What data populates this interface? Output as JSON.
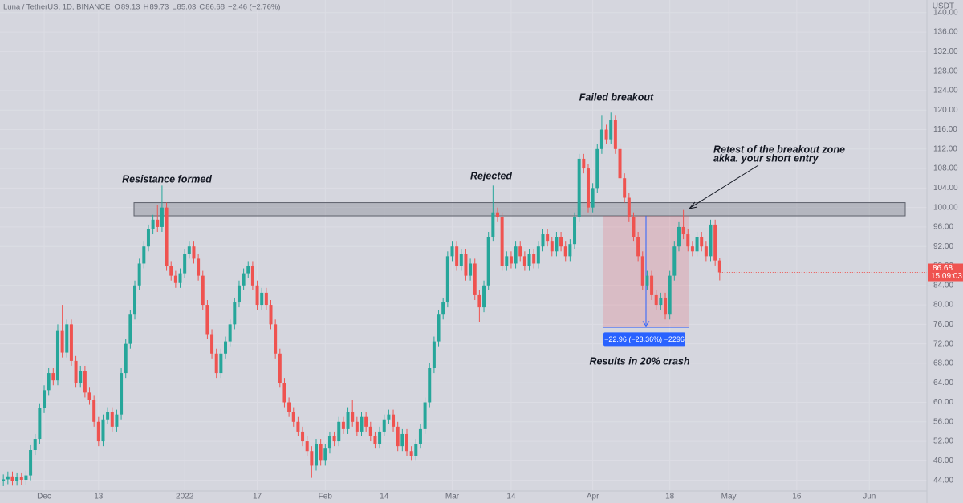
{
  "chart_data": {
    "type": "candlestick",
    "symbol": "Luna / TetherUS, 1D, BINANCE",
    "ohlc_letters": [
      "O",
      "H",
      "L",
      "C"
    ],
    "change": "−2.46 (−2.76%)",
    "currency": "USDT",
    "countdown": "15:09:03",
    "up_color": "#26a69a",
    "down_color": "#ef5350",
    "grid": true,
    "xlim": [
      -0.74,
      203.7
    ],
    "xticks": [
      {
        "value": 9,
        "label": "Dec"
      },
      {
        "value": 21,
        "label": "13"
      },
      {
        "value": 40,
        "label": "2022"
      },
      {
        "value": 56,
        "label": "17"
      },
      {
        "value": 71,
        "label": "Feb"
      },
      {
        "value": 84,
        "label": "14"
      },
      {
        "value": 99,
        "label": "Mar"
      },
      {
        "value": 112,
        "label": "14"
      },
      {
        "value": 130,
        "label": "Apr"
      },
      {
        "value": 147,
        "label": "18"
      },
      {
        "value": 160,
        "label": "May"
      },
      {
        "value": 175,
        "label": "16"
      },
      {
        "value": 191,
        "label": "Jun"
      }
    ],
    "ylim": [
      41.8,
      142.6
    ],
    "yticks": [
      {
        "value": 44,
        "label": "44.00"
      },
      {
        "value": 48,
        "label": "48.00"
      },
      {
        "value": 52,
        "label": "52.00"
      },
      {
        "value": 56,
        "label": "56.00"
      },
      {
        "value": 60,
        "label": "60.00"
      },
      {
        "value": 64,
        "label": "64.00"
      },
      {
        "value": 68,
        "label": "68.00"
      },
      {
        "value": 72,
        "label": "72.00"
      },
      {
        "value": 76,
        "label": "76.00"
      },
      {
        "value": 80,
        "label": "80.00"
      },
      {
        "value": 84,
        "label": "84.00"
      },
      {
        "value": 88,
        "label": "88.00"
      },
      {
        "value": 92,
        "label": "92.00"
      },
      {
        "value": 96,
        "label": "96.00"
      },
      {
        "value": 100,
        "label": "100.00"
      },
      {
        "value": 104,
        "label": "104.00"
      },
      {
        "value": 108,
        "label": "108.00"
      },
      {
        "value": 112,
        "label": "112.00"
      },
      {
        "value": 116,
        "label": "116.00"
      },
      {
        "value": 120,
        "label": "120.00"
      },
      {
        "value": 124,
        "label": "124.00"
      },
      {
        "value": 128,
        "label": "128.00"
      },
      {
        "value": 132,
        "label": "132.00"
      },
      {
        "value": 136,
        "label": "136.00"
      },
      {
        "value": 140,
        "label": "140.00"
      }
    ],
    "open": [
      43.8,
      44.2,
      44.8,
      43.9,
      44.6,
      44.1,
      45.0,
      50.2,
      52.5,
      58.8,
      62.5,
      66.0,
      64.5,
      74.8,
      70.2,
      76.0,
      68.5,
      64.0,
      66.5,
      62.0,
      60.5,
      56.0,
      52.0,
      56.5,
      58.0,
      55.0,
      57.5,
      66.0,
      72.0,
      78.0,
      84.0,
      88.5,
      92.0,
      95.5,
      97.5,
      96.0,
      100.0,
      88.0,
      86.0,
      84.5,
      86.5,
      90.5,
      92.0,
      89.5,
      86.0,
      80.0,
      74.0,
      70.0,
      66.0,
      70.0,
      72.5,
      76.0,
      80.5,
      84.0,
      86.5,
      88.0,
      84.0,
      80.0,
      82.5,
      80.0,
      76.0,
      70.0,
      64.0,
      60.0,
      58.0,
      56.0,
      54.0,
      52.0,
      50.0,
      47.0,
      51.5,
      48.0,
      50.5,
      53.0,
      52.0,
      56.0,
      54.5,
      58.0,
      56.0,
      54.0,
      57.0,
      55.0,
      53.0,
      51.5,
      54.0,
      56.5,
      57.5,
      55.0,
      51.0,
      53.5,
      50.0,
      49.0,
      51.5,
      54.5,
      60.0,
      67.0,
      72.5,
      78.0,
      80.5,
      90.0,
      92.0,
      88.0,
      90.5,
      86.0,
      88.5,
      82.0,
      79.5,
      84.0,
      94.0,
      99.0,
      98.0,
      88.0,
      90.0,
      88.5,
      92.0,
      90.0,
      88.0,
      90.5,
      88.5,
      92.0,
      94.5,
      93.0,
      91.0,
      94.0,
      92.0,
      90.0,
      92.5,
      98.0,
      110.0,
      108.0,
      100.0,
      104.0,
      112.0,
      116.0,
      114.0,
      118.0,
      112.0,
      106.0,
      102.0,
      98.0,
      94.0,
      90.0,
      84.0,
      86.0,
      82.0,
      80.0,
      81.5,
      78.0,
      86.0,
      92.0,
      96.0,
      94.5,
      92.0,
      91.0,
      94.0,
      92.0,
      90.0,
      96.5,
      89.13
    ],
    "high": [
      45.2,
      45.8,
      45.8,
      45.6,
      45.6,
      46.0,
      51.2,
      53.5,
      59.8,
      63.5,
      67.0,
      67.0,
      76.0,
      80.0,
      77.0,
      77.0,
      69.5,
      67.5,
      67.5,
      63.0,
      61.5,
      57.0,
      57.5,
      59.0,
      59.0,
      58.5,
      67.0,
      73.0,
      79.0,
      85.0,
      89.5,
      93.0,
      96.5,
      98.5,
      100.5,
      104.5,
      101.0,
      89.0,
      87.0,
      87.5,
      91.5,
      93.0,
      93.0,
      90.5,
      87.0,
      81.0,
      75.0,
      71.0,
      71.0,
      73.5,
      77.0,
      81.5,
      85.0,
      87.5,
      89.0,
      89.0,
      85.0,
      83.5,
      83.5,
      81.0,
      77.0,
      71.0,
      65.0,
      61.0,
      59.0,
      57.0,
      55.0,
      53.0,
      51.0,
      52.5,
      52.5,
      51.5,
      54.0,
      54.0,
      57.0,
      57.0,
      59.0,
      60.5,
      57.0,
      58.0,
      58.0,
      56.0,
      54.0,
      55.0,
      57.5,
      58.5,
      58.5,
      56.0,
      54.5,
      54.5,
      51.0,
      52.5,
      55.5,
      61.0,
      68.0,
      73.5,
      79.0,
      81.5,
      91.0,
      93.0,
      93.0,
      91.5,
      91.5,
      89.5,
      89.5,
      83.0,
      85.0,
      95.0,
      104.5,
      100.0,
      99.0,
      91.0,
      91.0,
      93.0,
      93.0,
      91.0,
      91.5,
      91.5,
      93.0,
      95.5,
      95.5,
      94.0,
      95.0,
      95.0,
      93.0,
      93.5,
      99.0,
      111.0,
      111.0,
      109.0,
      105.0,
      113.0,
      119.0,
      117.0,
      119.5,
      119.0,
      113.0,
      107.0,
      103.0,
      99.0,
      95.0,
      91.0,
      87.0,
      87.0,
      83.0,
      82.5,
      82.5,
      87.0,
      93.0,
      97.0,
      99.5,
      95.5,
      93.0,
      95.0,
      95.0,
      93.0,
      97.5,
      97.5,
      89.73
    ],
    "low": [
      42.8,
      43.2,
      42.9,
      42.9,
      43.1,
      43.1,
      44.0,
      49.2,
      51.5,
      57.8,
      61.5,
      63.5,
      63.5,
      69.2,
      69.2,
      67.5,
      63.0,
      63.0,
      61.0,
      59.5,
      55.0,
      51.0,
      51.0,
      55.5,
      54.0,
      54.0,
      56.5,
      65.0,
      71.0,
      77.0,
      83.0,
      87.5,
      91.0,
      94.5,
      95.0,
      95.0,
      87.0,
      85.0,
      83.5,
      83.5,
      85.5,
      89.5,
      88.5,
      85.0,
      79.0,
      73.0,
      69.0,
      65.0,
      65.0,
      69.0,
      71.5,
      75.0,
      79.5,
      83.0,
      85.5,
      83.0,
      79.0,
      79.0,
      79.0,
      75.0,
      69.0,
      63.0,
      59.0,
      57.0,
      55.0,
      53.0,
      51.0,
      49.0,
      44.5,
      46.0,
      47.0,
      47.0,
      49.5,
      51.0,
      51.0,
      53.5,
      53.5,
      55.0,
      53.0,
      53.0,
      54.0,
      52.0,
      50.5,
      50.5,
      53.0,
      55.5,
      54.0,
      50.0,
      50.0,
      49.0,
      48.0,
      48.0,
      50.5,
      53.5,
      59.0,
      66.0,
      71.5,
      77.0,
      79.5,
      89.0,
      87.0,
      87.0,
      85.0,
      85.0,
      81.0,
      76.5,
      78.5,
      83.0,
      93.0,
      97.0,
      87.0,
      87.0,
      87.5,
      87.5,
      89.0,
      87.0,
      87.0,
      87.5,
      87.5,
      91.0,
      92.0,
      90.0,
      90.0,
      91.0,
      89.0,
      89.0,
      91.5,
      97.0,
      107.0,
      99.0,
      99.0,
      103.0,
      111.0,
      113.0,
      113.0,
      111.0,
      105.0,
      101.0,
      97.0,
      93.0,
      89.0,
      83.0,
      83.0,
      81.0,
      79.0,
      79.0,
      77.0,
      77.0,
      85.0,
      91.0,
      93.5,
      91.0,
      90.0,
      90.0,
      91.0,
      89.0,
      89.0,
      88.1,
      85.03
    ],
    "close": [
      44.2,
      44.8,
      43.9,
      44.6,
      44.1,
      45.0,
      50.2,
      52.5,
      58.8,
      62.5,
      66.0,
      64.5,
      74.8,
      70.2,
      76.0,
      68.5,
      64.0,
      66.5,
      62.0,
      60.5,
      56.0,
      52.0,
      56.5,
      58.0,
      55.0,
      57.5,
      66.0,
      72.0,
      78.0,
      84.0,
      88.5,
      92.0,
      95.5,
      97.5,
      96.0,
      100.0,
      88.0,
      86.0,
      84.5,
      86.5,
      90.5,
      92.0,
      89.5,
      86.0,
      80.0,
      74.0,
      70.0,
      66.0,
      70.0,
      72.5,
      76.0,
      80.5,
      84.0,
      86.5,
      88.0,
      84.0,
      80.0,
      82.5,
      80.0,
      76.0,
      70.0,
      64.0,
      60.0,
      58.0,
      56.0,
      54.0,
      52.0,
      50.0,
      47.0,
      51.5,
      48.0,
      50.5,
      53.0,
      52.0,
      56.0,
      54.5,
      58.0,
      56.0,
      54.0,
      57.0,
      55.0,
      53.0,
      51.5,
      54.0,
      56.5,
      57.5,
      55.0,
      51.0,
      53.5,
      50.0,
      49.0,
      51.5,
      54.5,
      60.0,
      67.0,
      72.5,
      78.0,
      80.5,
      90.0,
      92.0,
      88.0,
      90.5,
      86.0,
      88.5,
      82.0,
      79.5,
      84.0,
      94.0,
      99.0,
      98.0,
      88.0,
      90.0,
      88.5,
      92.0,
      90.0,
      88.0,
      90.5,
      88.5,
      92.0,
      94.5,
      93.0,
      91.0,
      94.0,
      92.0,
      90.0,
      92.5,
      98.0,
      110.0,
      108.0,
      100.0,
      104.0,
      112.0,
      116.0,
      114.0,
      118.0,
      112.0,
      106.0,
      102.0,
      98.0,
      94.0,
      90.0,
      84.0,
      86.0,
      82.0,
      80.0,
      81.5,
      78.0,
      86.0,
      92.0,
      96.0,
      94.5,
      92.0,
      91.0,
      94.0,
      92.0,
      90.0,
      96.5,
      89.13,
      86.68
    ],
    "resistance_zone": {
      "low": 98.29,
      "high": 101.0
    },
    "short_position": {
      "entry": 98.29,
      "target": 75.33,
      "label": "−22.96 (−23.36%) −2296"
    },
    "annotations": [
      "Resistance formed",
      "Rejected",
      "Failed breakout",
      "Retest of the breakout zone",
      "akka. your short entry",
      "Results in 20% crash"
    ]
  }
}
